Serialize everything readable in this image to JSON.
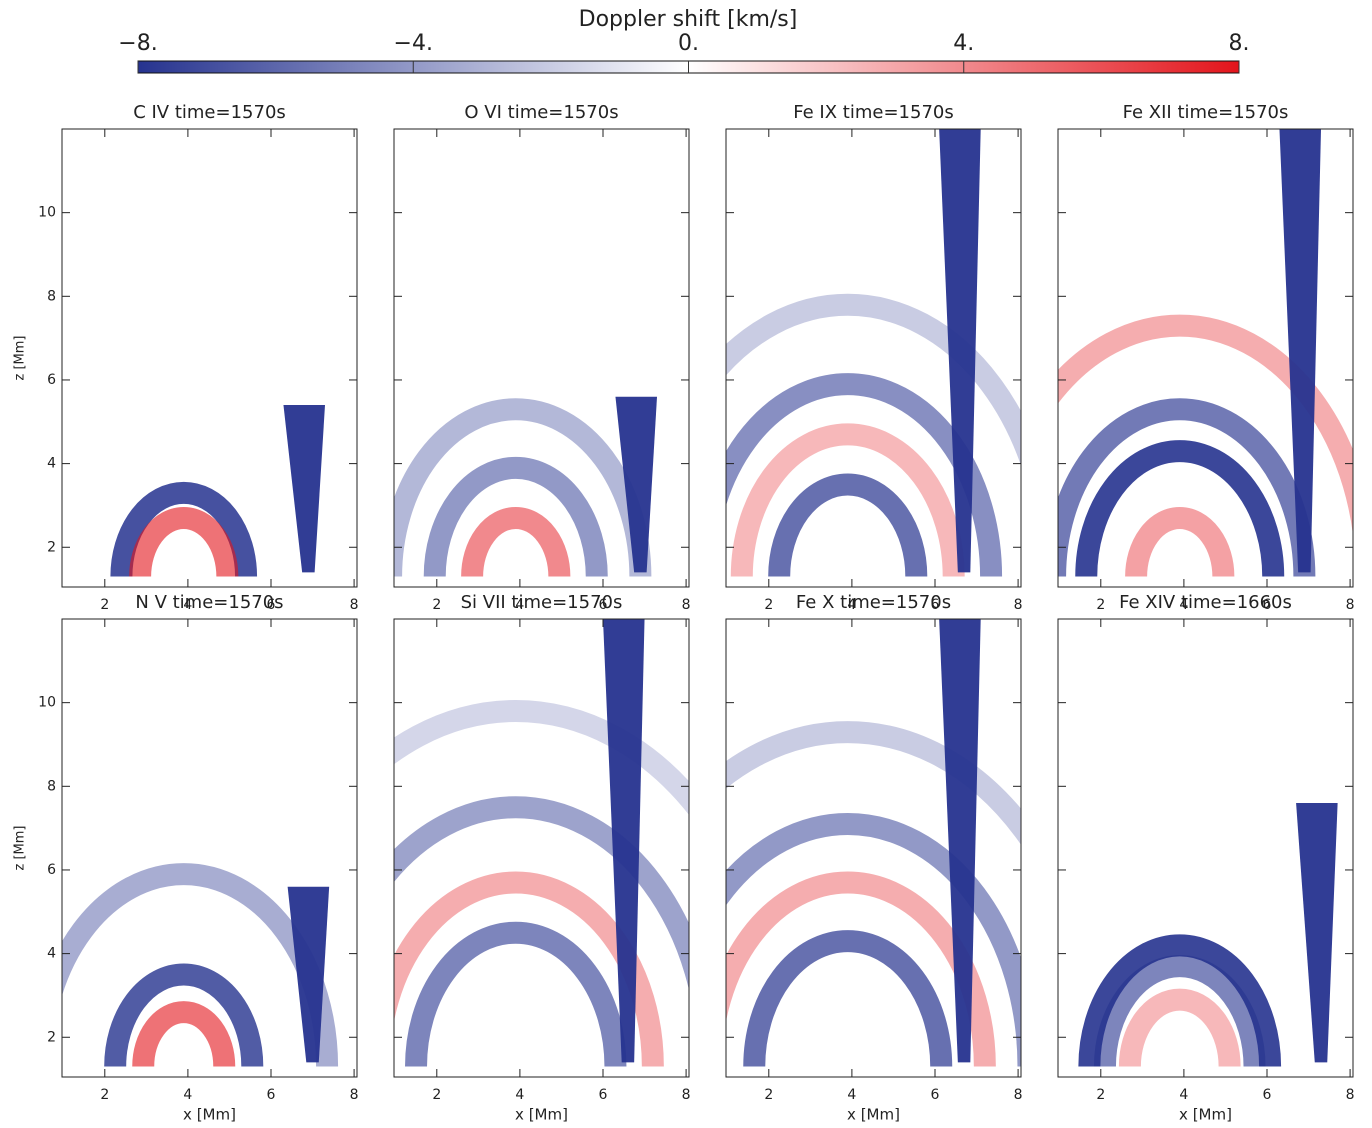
{
  "chart_data": {
    "type": "image",
    "colorbar": {
      "title": "Doppler shift [km/s]",
      "lim": [
        -8,
        8
      ],
      "ticks": [
        {
          "value": -8,
          "label": "−8."
        },
        {
          "value": -4,
          "label": "−4."
        },
        {
          "value": 0,
          "label": "0."
        },
        {
          "value": 4,
          "label": "4."
        },
        {
          "value": 8,
          "label": "8."
        }
      ],
      "colors": [
        "#26338f",
        "#ffffff",
        "#e3141b"
      ]
    },
    "x_label": "x [Mm]",
    "y_label": "z [Mm]",
    "xlim": [
      0.97,
      8.07
    ],
    "ylim": [
      1.05,
      12
    ],
    "xticks": [
      2,
      4,
      6,
      8
    ],
    "yticks": [
      2,
      4,
      6,
      8,
      10
    ],
    "panels": [
      {
        "title": "C IV time=1570s"
      },
      {
        "title": "O VI time=1570s"
      },
      {
        "title": "Fe IX time=1570s"
      },
      {
        "title": "Fe XII time=1570s"
      },
      {
        "title": "N V time=1570s"
      },
      {
        "title": "Si VII time=1570s"
      },
      {
        "title": "Fe X time=1570s"
      },
      {
        "title": "Fe XIV time=1660s"
      }
    ]
  }
}
